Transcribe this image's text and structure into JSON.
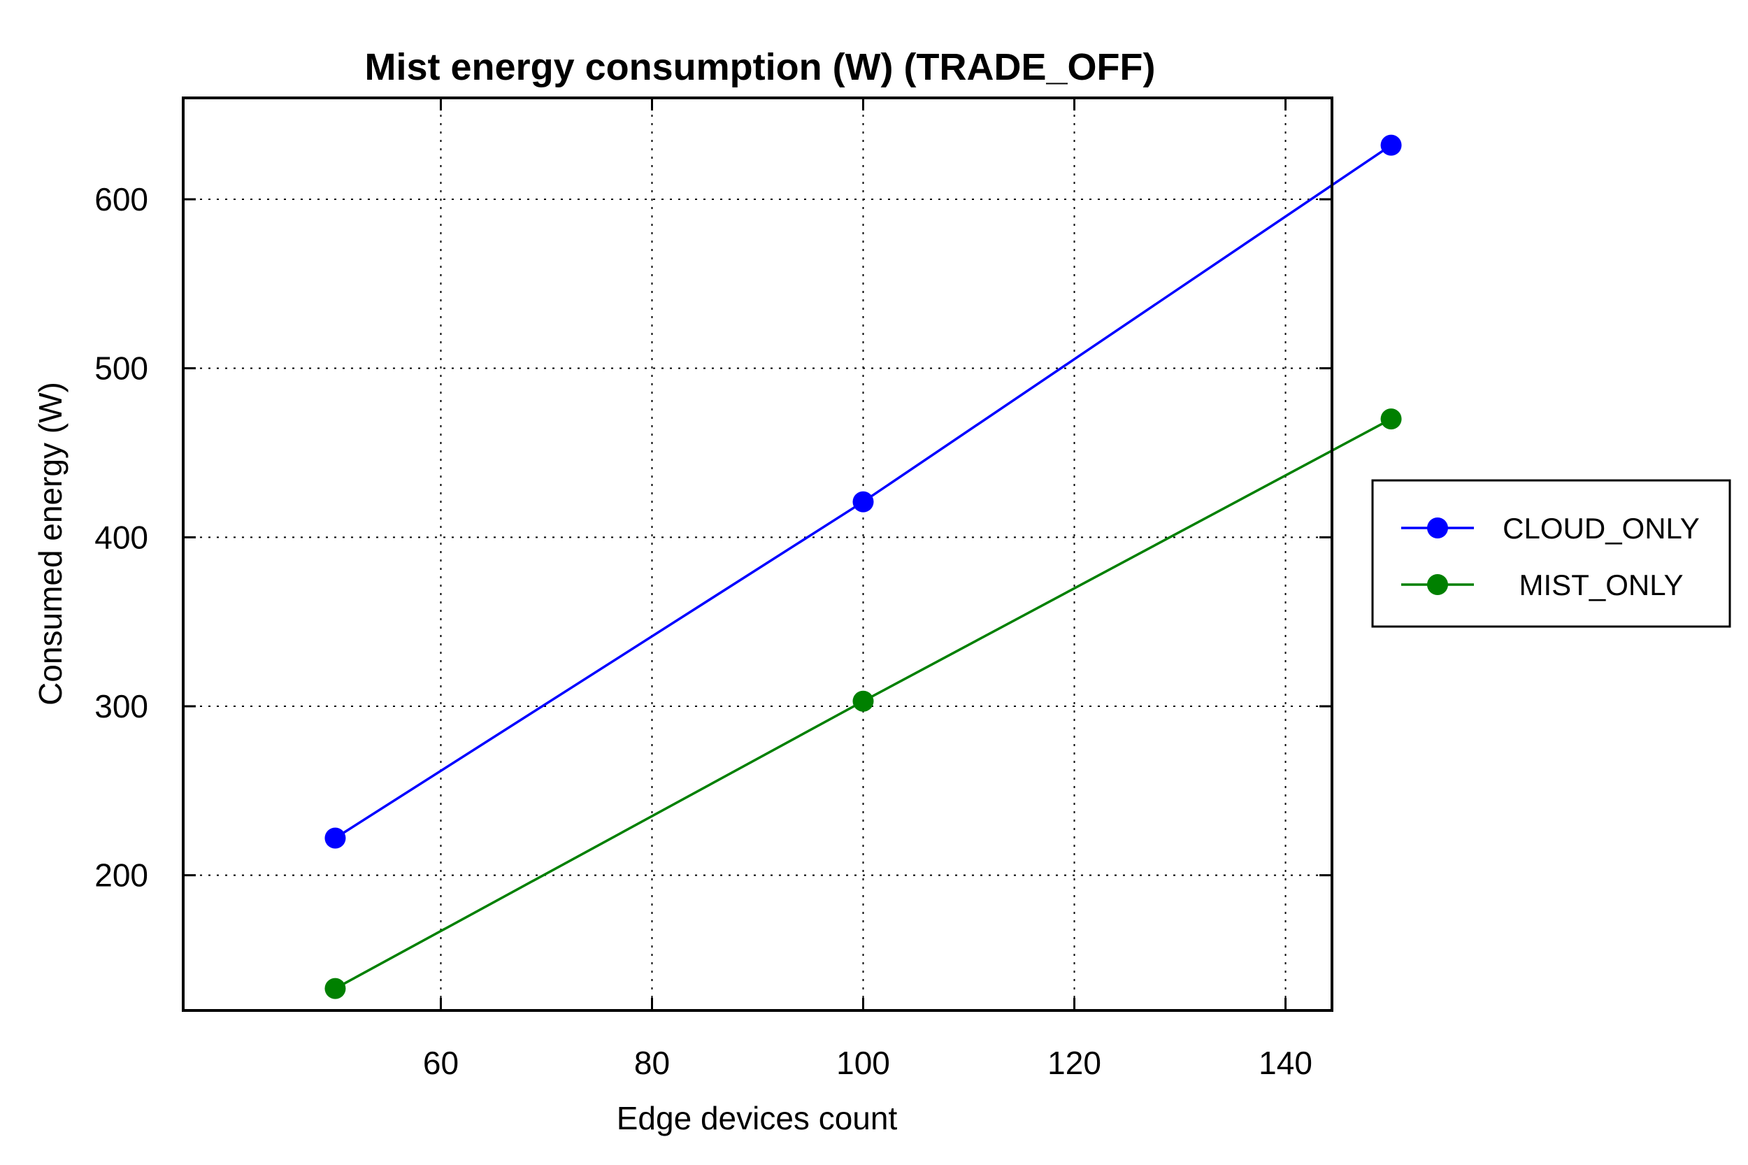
{
  "chart_data": {
    "type": "line",
    "title": "Mist energy consumption (W) (TRADE_OFF)",
    "xlabel": "Edge devices count",
    "ylabel": "Consumed energy (W)",
    "x": [
      50,
      100,
      150
    ],
    "xlim": [
      35.6,
      144.4
    ],
    "ylim": [
      120,
      660
    ],
    "xticks": [
      60,
      80,
      100,
      120,
      140
    ],
    "yticks": [
      200,
      300,
      400,
      500,
      600
    ],
    "grid": true,
    "legend_position": "right",
    "series": [
      {
        "name": "CLOUD_ONLY",
        "color": "#0000ff",
        "values": [
          222,
          421,
          632
        ]
      },
      {
        "name": "MIST_ONLY",
        "color": "#008000",
        "values": [
          133,
          303,
          470
        ]
      }
    ]
  }
}
